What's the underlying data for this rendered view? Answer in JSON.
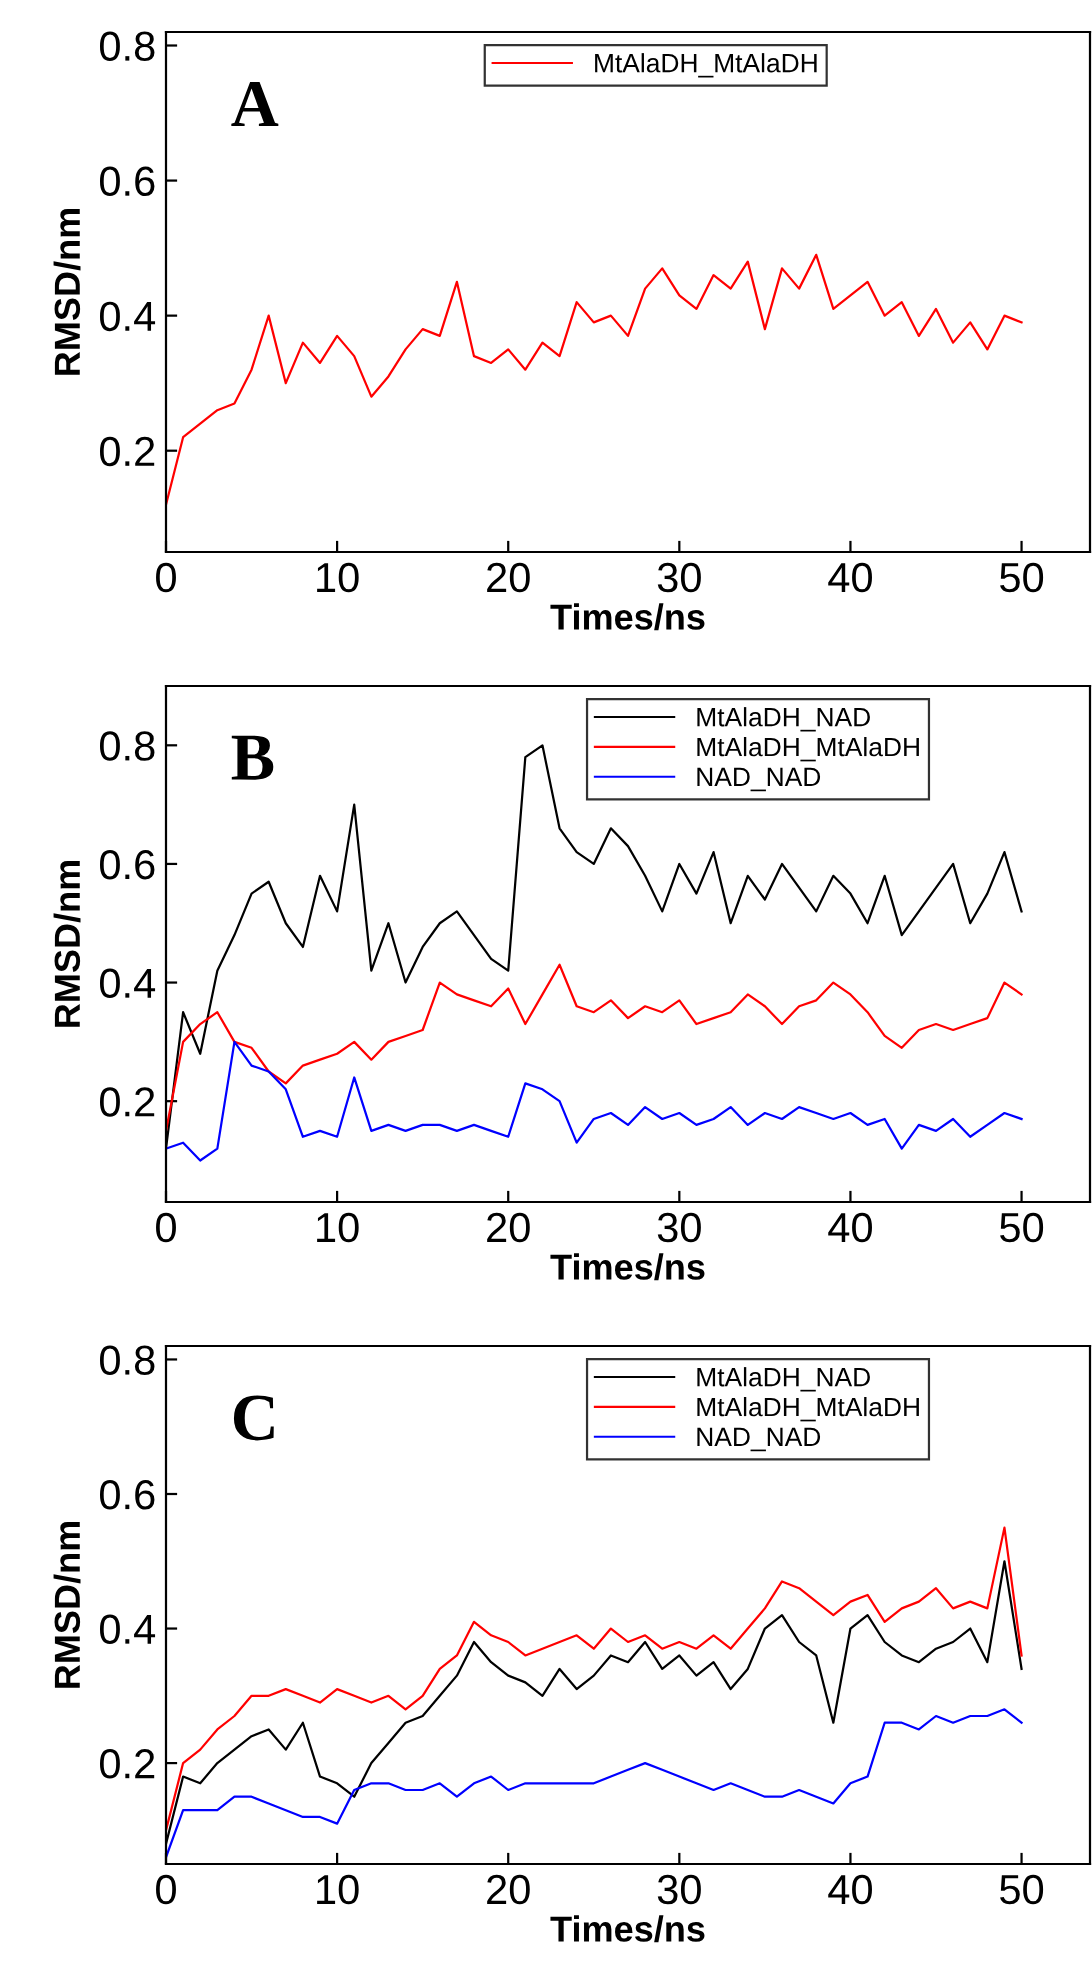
{
  "chart_data": [
    {
      "type": "line",
      "annotations": [
        "A"
      ],
      "xlabel": "Times/ns",
      "ylabel": "RMSD/nm",
      "xlim": [
        0,
        54
      ],
      "ylim": [
        0.05,
        0.82
      ],
      "xticks": [
        0,
        10,
        20,
        30,
        40,
        50
      ],
      "yticks": [
        0.2,
        0.4,
        0.6,
        0.8
      ],
      "grid": false,
      "legend": "top",
      "x": [
        0,
        1,
        2,
        3,
        4,
        5,
        6,
        7,
        8,
        9,
        10,
        11,
        12,
        13,
        14,
        15,
        16,
        17,
        18,
        19,
        20,
        21,
        22,
        23,
        24,
        25,
        26,
        27,
        28,
        29,
        30,
        31,
        32,
        33,
        34,
        35,
        36,
        37,
        38,
        39,
        40,
        41,
        42,
        43,
        44,
        45,
        46,
        47,
        48,
        49,
        50
      ],
      "series": [
        {
          "name": "MtAlaDH_MtAlaDH",
          "color": "#ff0000",
          "values": [
            0.12,
            0.22,
            0.24,
            0.26,
            0.27,
            0.32,
            0.4,
            0.3,
            0.36,
            0.33,
            0.37,
            0.34,
            0.28,
            0.31,
            0.35,
            0.38,
            0.37,
            0.45,
            0.34,
            0.33,
            0.35,
            0.32,
            0.36,
            0.34,
            0.42,
            0.39,
            0.4,
            0.37,
            0.44,
            0.47,
            0.43,
            0.41,
            0.46,
            0.44,
            0.48,
            0.38,
            0.47,
            0.44,
            0.49,
            0.41,
            0.43,
            0.45,
            0.4,
            0.42,
            0.37,
            0.41,
            0.36,
            0.39,
            0.35,
            0.4,
            0.39
          ]
        }
      ]
    },
    {
      "type": "line",
      "annotations": [
        "B"
      ],
      "xlabel": "Times/ns",
      "ylabel": "RMSD/nm",
      "xlim": [
        0,
        54
      ],
      "ylim": [
        0.03,
        0.9
      ],
      "xticks": [
        0,
        10,
        20,
        30,
        40,
        50
      ],
      "yticks": [
        0.2,
        0.4,
        0.6,
        0.8
      ],
      "grid": false,
      "legend": "top right",
      "x": [
        0,
        1,
        2,
        3,
        4,
        5,
        6,
        7,
        8,
        9,
        10,
        11,
        12,
        13,
        14,
        15,
        16,
        17,
        18,
        19,
        20,
        21,
        22,
        23,
        24,
        25,
        26,
        27,
        28,
        29,
        30,
        31,
        32,
        33,
        34,
        35,
        36,
        37,
        38,
        39,
        40,
        41,
        42,
        43,
        44,
        45,
        46,
        47,
        48,
        49,
        50
      ],
      "series": [
        {
          "name": "MtAlaDH_NAD",
          "color": "#000000",
          "values": [
            0.12,
            0.35,
            0.28,
            0.42,
            0.48,
            0.55,
            0.57,
            0.5,
            0.46,
            0.58,
            0.52,
            0.7,
            0.42,
            0.5,
            0.4,
            0.46,
            0.5,
            0.52,
            0.48,
            0.44,
            0.42,
            0.78,
            0.8,
            0.66,
            0.62,
            0.6,
            0.66,
            0.63,
            0.58,
            0.52,
            0.6,
            0.55,
            0.62,
            0.5,
            0.58,
            0.54,
            0.6,
            0.56,
            0.52,
            0.58,
            0.55,
            0.5,
            0.58,
            0.48,
            0.52,
            0.56,
            0.6,
            0.5,
            0.55,
            0.62,
            0.52
          ]
        },
        {
          "name": "MtAlaDH_MtAlaDH",
          "color": "#ff0000",
          "values": [
            0.15,
            0.3,
            0.33,
            0.35,
            0.3,
            0.29,
            0.25,
            0.23,
            0.26,
            0.27,
            0.28,
            0.3,
            0.27,
            0.3,
            0.31,
            0.32,
            0.4,
            0.38,
            0.37,
            0.36,
            0.39,
            0.33,
            0.38,
            0.43,
            0.36,
            0.35,
            0.37,
            0.34,
            0.36,
            0.35,
            0.37,
            0.33,
            0.34,
            0.35,
            0.38,
            0.36,
            0.33,
            0.36,
            0.37,
            0.4,
            0.38,
            0.35,
            0.31,
            0.29,
            0.32,
            0.33,
            0.32,
            0.33,
            0.34,
            0.4,
            0.38
          ]
        },
        {
          "name": "NAD_NAD",
          "color": "#0000ff",
          "values": [
            0.12,
            0.13,
            0.1,
            0.12,
            0.3,
            0.26,
            0.25,
            0.22,
            0.14,
            0.15,
            0.14,
            0.24,
            0.15,
            0.16,
            0.15,
            0.16,
            0.16,
            0.15,
            0.16,
            0.15,
            0.14,
            0.23,
            0.22,
            0.2,
            0.13,
            0.17,
            0.18,
            0.16,
            0.19,
            0.17,
            0.18,
            0.16,
            0.17,
            0.19,
            0.16,
            0.18,
            0.17,
            0.19,
            0.18,
            0.17,
            0.18,
            0.16,
            0.17,
            0.12,
            0.16,
            0.15,
            0.17,
            0.14,
            0.16,
            0.18,
            0.17
          ]
        }
      ]
    },
    {
      "type": "line",
      "annotations": [
        "C"
      ],
      "xlabel": "Times/ns",
      "ylabel": "RMSD/nm",
      "xlim": [
        0,
        54
      ],
      "ylim": [
        0.05,
        0.82
      ],
      "xticks": [
        0,
        10,
        20,
        30,
        40,
        50
      ],
      "yticks": [
        0.2,
        0.4,
        0.6,
        0.8
      ],
      "grid": false,
      "legend": "top right",
      "x": [
        0,
        1,
        2,
        3,
        4,
        5,
        6,
        7,
        8,
        9,
        10,
        11,
        12,
        13,
        14,
        15,
        16,
        17,
        18,
        19,
        20,
        21,
        22,
        23,
        24,
        25,
        26,
        27,
        28,
        29,
        30,
        31,
        32,
        33,
        34,
        35,
        36,
        37,
        38,
        39,
        40,
        41,
        42,
        43,
        44,
        45,
        46,
        47,
        48,
        49,
        50
      ],
      "series": [
        {
          "name": "MtAlaDH_NAD",
          "color": "#000000",
          "values": [
            0.08,
            0.18,
            0.17,
            0.2,
            0.22,
            0.24,
            0.25,
            0.22,
            0.26,
            0.18,
            0.17,
            0.15,
            0.2,
            0.23,
            0.26,
            0.27,
            0.3,
            0.33,
            0.38,
            0.35,
            0.33,
            0.32,
            0.3,
            0.34,
            0.31,
            0.33,
            0.36,
            0.35,
            0.38,
            0.34,
            0.36,
            0.33,
            0.35,
            0.31,
            0.34,
            0.4,
            0.42,
            0.38,
            0.36,
            0.26,
            0.4,
            0.42,
            0.38,
            0.36,
            0.35,
            0.37,
            0.38,
            0.4,
            0.35,
            0.5,
            0.34
          ]
        },
        {
          "name": "MtAlaDH_MtAlaDH",
          "color": "#ff0000",
          "values": [
            0.1,
            0.2,
            0.22,
            0.25,
            0.27,
            0.3,
            0.3,
            0.31,
            0.3,
            0.29,
            0.31,
            0.3,
            0.29,
            0.3,
            0.28,
            0.3,
            0.34,
            0.36,
            0.41,
            0.39,
            0.38,
            0.36,
            0.37,
            0.38,
            0.39,
            0.37,
            0.4,
            0.38,
            0.39,
            0.37,
            0.38,
            0.37,
            0.39,
            0.37,
            0.4,
            0.43,
            0.47,
            0.46,
            0.44,
            0.42,
            0.44,
            0.45,
            0.41,
            0.43,
            0.44,
            0.46,
            0.43,
            0.44,
            0.43,
            0.55,
            0.36
          ]
        },
        {
          "name": "NAD_NAD",
          "color": "#0000ff",
          "values": [
            0.06,
            0.13,
            0.13,
            0.13,
            0.15,
            0.15,
            0.14,
            0.13,
            0.12,
            0.12,
            0.11,
            0.16,
            0.17,
            0.17,
            0.16,
            0.16,
            0.17,
            0.15,
            0.17,
            0.18,
            0.16,
            0.17,
            0.17,
            0.17,
            0.17,
            0.17,
            0.18,
            0.19,
            0.2,
            0.19,
            0.18,
            0.17,
            0.16,
            0.17,
            0.16,
            0.15,
            0.15,
            0.16,
            0.15,
            0.14,
            0.17,
            0.18,
            0.26,
            0.26,
            0.25,
            0.27,
            0.26,
            0.27,
            0.27,
            0.28,
            0.26
          ]
        }
      ]
    }
  ]
}
